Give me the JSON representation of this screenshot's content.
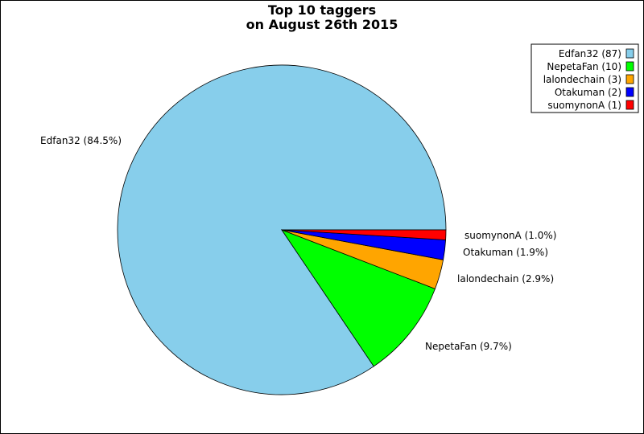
{
  "chart_data": {
    "type": "pie",
    "title": [
      "Top 10 taggers",
      "on August 26th 2015"
    ],
    "slices": [
      {
        "name": "Edfan32",
        "count": 87,
        "percent_label": "Edfan32 (84.5%)",
        "legend_label": "Edfan32 (87)",
        "color": "#87ceeb"
      },
      {
        "name": "NepetaFan",
        "count": 10,
        "percent_label": "NepetaFan (9.7%)",
        "legend_label": "NepetaFan (10)",
        "color": "#00ff00"
      },
      {
        "name": "lalondechain",
        "count": 3,
        "percent_label": "lalondechain (2.9%)",
        "legend_label": "lalondechain (3)",
        "color": "#ffa500"
      },
      {
        "name": "Otakuman",
        "count": 2,
        "percent_label": "Otakuman (1.9%)",
        "legend_label": "Otakuman (2)",
        "color": "#0000ff"
      },
      {
        "name": "suomynonA",
        "count": 1,
        "percent_label": "suomynonA (1.0%)",
        "legend_label": "suomynonA (1)",
        "color": "#ff0000"
      }
    ],
    "legend_position": "top-right"
  }
}
